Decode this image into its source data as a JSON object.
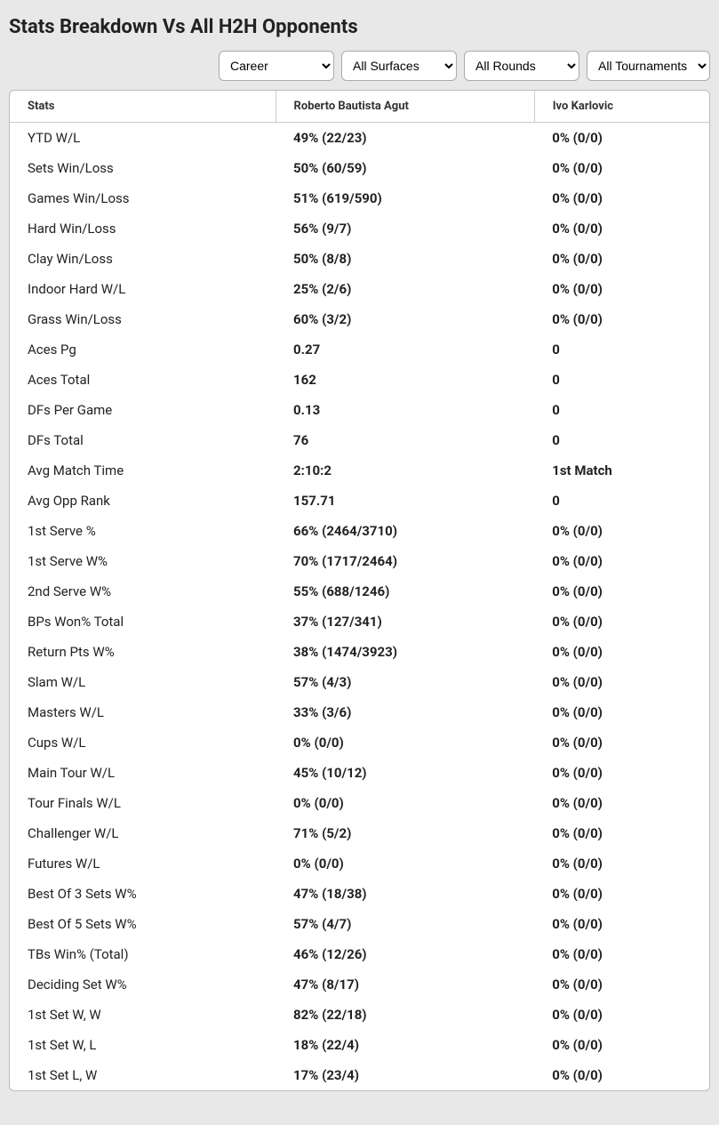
{
  "title": "Stats Breakdown Vs All H2H Opponents",
  "filters": {
    "period": {
      "selected": "Career",
      "options": [
        "Career"
      ]
    },
    "surface": {
      "selected": "All Surfaces",
      "options": [
        "All Surfaces"
      ]
    },
    "round": {
      "selected": "All Rounds",
      "options": [
        "All Rounds"
      ]
    },
    "tourn": {
      "selected": "All Tournaments",
      "options": [
        "All Tournaments"
      ]
    }
  },
  "columns": {
    "stats": "Stats",
    "p1": "Roberto Bautista Agut",
    "p2": "Ivo Karlovic"
  },
  "rows": [
    {
      "label": "YTD W/L",
      "p1": "49% (22/23)",
      "p2": "0% (0/0)"
    },
    {
      "label": "Sets Win/Loss",
      "p1": "50% (60/59)",
      "p2": "0% (0/0)"
    },
    {
      "label": "Games Win/Loss",
      "p1": "51% (619/590)",
      "p2": "0% (0/0)"
    },
    {
      "label": "Hard Win/Loss",
      "p1": "56% (9/7)",
      "p2": "0% (0/0)"
    },
    {
      "label": "Clay Win/Loss",
      "p1": "50% (8/8)",
      "p2": "0% (0/0)"
    },
    {
      "label": "Indoor Hard W/L",
      "p1": "25% (2/6)",
      "p2": "0% (0/0)"
    },
    {
      "label": "Grass Win/Loss",
      "p1": "60% (3/2)",
      "p2": "0% (0/0)"
    },
    {
      "label": "Aces Pg",
      "p1": "0.27",
      "p2": "0"
    },
    {
      "label": "Aces Total",
      "p1": "162",
      "p2": "0"
    },
    {
      "label": "DFs Per Game",
      "p1": "0.13",
      "p2": "0"
    },
    {
      "label": "DFs Total",
      "p1": "76",
      "p2": "0"
    },
    {
      "label": "Avg Match Time",
      "p1": "2:10:2",
      "p2": "1st Match"
    },
    {
      "label": "Avg Opp Rank",
      "p1": "157.71",
      "p2": "0"
    },
    {
      "label": "1st Serve %",
      "p1": "66% (2464/3710)",
      "p2": "0% (0/0)"
    },
    {
      "label": "1st Serve W%",
      "p1": "70% (1717/2464)",
      "p2": "0% (0/0)"
    },
    {
      "label": "2nd Serve W%",
      "p1": "55% (688/1246)",
      "p2": "0% (0/0)"
    },
    {
      "label": "BPs Won% Total",
      "p1": "37% (127/341)",
      "p2": "0% (0/0)"
    },
    {
      "label": "Return Pts W%",
      "p1": "38% (1474/3923)",
      "p2": "0% (0/0)"
    },
    {
      "label": "Slam W/L",
      "p1": "57% (4/3)",
      "p2": "0% (0/0)"
    },
    {
      "label": "Masters W/L",
      "p1": "33% (3/6)",
      "p2": "0% (0/0)"
    },
    {
      "label": "Cups W/L",
      "p1": "0% (0/0)",
      "p2": "0% (0/0)"
    },
    {
      "label": "Main Tour W/L",
      "p1": "45% (10/12)",
      "p2": "0% (0/0)"
    },
    {
      "label": "Tour Finals W/L",
      "p1": "0% (0/0)",
      "p2": "0% (0/0)"
    },
    {
      "label": "Challenger W/L",
      "p1": "71% (5/2)",
      "p2": "0% (0/0)"
    },
    {
      "label": "Futures W/L",
      "p1": "0% (0/0)",
      "p2": "0% (0/0)"
    },
    {
      "label": "Best Of 3 Sets W%",
      "p1": "47% (18/38)",
      "p2": "0% (0/0)"
    },
    {
      "label": "Best Of 5 Sets W%",
      "p1": "57% (4/7)",
      "p2": "0% (0/0)"
    },
    {
      "label": "TBs Win% (Total)",
      "p1": "46% (12/26)",
      "p2": "0% (0/0)"
    },
    {
      "label": "Deciding Set W%",
      "p1": "47% (8/17)",
      "p2": "0% (0/0)"
    },
    {
      "label": "1st Set W, W",
      "p1": "82% (22/18)",
      "p2": "0% (0/0)"
    },
    {
      "label": "1st Set W, L",
      "p1": "18% (22/4)",
      "p2": "0% (0/0)"
    },
    {
      "label": "1st Set L, W",
      "p1": "17% (23/4)",
      "p2": "0% (0/0)"
    }
  ],
  "style": {
    "page_bg": "#e8e8e8",
    "table_bg": "#ffffff",
    "border_color": "#bbbbbb",
    "header_border": "#cccccc",
    "title_fontsize": 22,
    "header_fontsize": 13,
    "cell_fontsize": 15,
    "label_weight": 400,
    "value_weight": 700,
    "col_widths_pct": [
      38,
      37,
      25
    ]
  }
}
